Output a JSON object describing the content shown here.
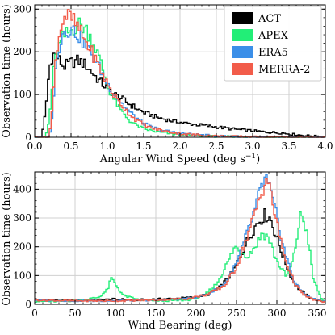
{
  "chart_data": [
    {
      "type": "line",
      "style": "step-histogram",
      "xlabel": "Angular Wind Speed (deg s",
      "xlabel_sup": "−1",
      "xlabel_end": ")",
      "ylabel": "Observation time (hours)",
      "xlim": [
        0.0,
        4.0
      ],
      "ylim": [
        0,
        310
      ],
      "xticks": [
        0.0,
        0.5,
        1.0,
        1.5,
        2.0,
        2.5,
        3.0,
        3.5,
        4.0
      ],
      "xtick_labels": [
        "0.0",
        "0.5",
        "1.0",
        "1.5",
        "2.0",
        "2.5",
        "3.0",
        "3.5",
        "4.0"
      ],
      "yticks": [
        0,
        100,
        200,
        300
      ],
      "ytick_labels": [
        "0",
        "100",
        "200",
        "300"
      ],
      "grid": true,
      "legend_position": "top-right",
      "series": [
        {
          "name": "ACT",
          "color": "#000000",
          "points": [
            [
              0.0,
              0
            ],
            [
              0.1,
              2
            ],
            [
              0.15,
              60
            ],
            [
              0.2,
              160
            ],
            [
              0.25,
              195
            ],
            [
              0.3,
              190
            ],
            [
              0.4,
              165
            ],
            [
              0.5,
              175
            ],
            [
              0.6,
              180
            ],
            [
              0.7,
              170
            ],
            [
              0.8,
              150
            ],
            [
              0.9,
              130
            ],
            [
              1.0,
              115
            ],
            [
              1.1,
              100
            ],
            [
              1.2,
              90
            ],
            [
              1.3,
              78
            ],
            [
              1.4,
              68
            ],
            [
              1.5,
              58
            ],
            [
              1.6,
              52
            ],
            [
              1.7,
              46
            ],
            [
              1.8,
              42
            ],
            [
              1.9,
              38
            ],
            [
              2.0,
              35
            ],
            [
              2.2,
              30
            ],
            [
              2.4,
              26
            ],
            [
              2.6,
              22
            ],
            [
              2.8,
              18
            ],
            [
              3.0,
              15
            ],
            [
              3.2,
              12
            ],
            [
              3.4,
              10
            ],
            [
              3.6,
              6
            ],
            [
              3.8,
              3
            ],
            [
              4.0,
              1
            ]
          ]
        },
        {
          "name": "APEX",
          "color": "#22ee77",
          "points": [
            [
              0.0,
              0
            ],
            [
              0.15,
              0
            ],
            [
              0.2,
              40
            ],
            [
              0.25,
              140
            ],
            [
              0.3,
              200
            ],
            [
              0.4,
              235
            ],
            [
              0.5,
              250
            ],
            [
              0.6,
              265
            ],
            [
              0.7,
              255
            ],
            [
              0.8,
              225
            ],
            [
              0.9,
              180
            ],
            [
              1.0,
              120
            ],
            [
              1.1,
              85
            ],
            [
              1.2,
              60
            ],
            [
              1.3,
              40
            ],
            [
              1.4,
              28
            ],
            [
              1.5,
              20
            ],
            [
              1.7,
              12
            ],
            [
              2.0,
              6
            ],
            [
              2.5,
              2
            ],
            [
              3.0,
              1
            ],
            [
              3.5,
              0
            ]
          ]
        },
        {
          "name": "ERA5",
          "color": "#3b8fe8",
          "points": [
            [
              0.0,
              0
            ],
            [
              0.2,
              0
            ],
            [
              0.25,
              60
            ],
            [
              0.3,
              190
            ],
            [
              0.4,
              250
            ],
            [
              0.5,
              255
            ],
            [
              0.6,
              240
            ],
            [
              0.7,
              215
            ],
            [
              0.8,
              190
            ],
            [
              0.9,
              160
            ],
            [
              1.0,
              125
            ],
            [
              1.1,
              100
            ],
            [
              1.2,
              80
            ],
            [
              1.3,
              60
            ],
            [
              1.4,
              45
            ],
            [
              1.5,
              33
            ],
            [
              1.6,
              24
            ],
            [
              1.8,
              15
            ],
            [
              2.0,
              9
            ],
            [
              2.5,
              3
            ],
            [
              3.0,
              1
            ],
            [
              3.5,
              0
            ]
          ]
        },
        {
          "name": "MERRA-2",
          "color": "#f25c4a",
          "points": [
            [
              0.0,
              0
            ],
            [
              0.2,
              0
            ],
            [
              0.25,
              80
            ],
            [
              0.3,
              210
            ],
            [
              0.4,
              285
            ],
            [
              0.5,
              280
            ],
            [
              0.6,
              255
            ],
            [
              0.7,
              225
            ],
            [
              0.8,
              195
            ],
            [
              0.9,
              160
            ],
            [
              1.0,
              125
            ],
            [
              1.1,
              95
            ],
            [
              1.2,
              75
            ],
            [
              1.3,
              55
            ],
            [
              1.4,
              40
            ],
            [
              1.5,
              30
            ],
            [
              1.6,
              22
            ],
            [
              1.8,
              14
            ],
            [
              2.0,
              8
            ],
            [
              2.5,
              3
            ],
            [
              3.0,
              1
            ],
            [
              3.5,
              0
            ]
          ]
        }
      ]
    },
    {
      "type": "line",
      "style": "step-histogram",
      "xlabel": "Wind Bearing (deg)",
      "ylabel": "Observation time (hours)",
      "xlim": [
        0,
        360
      ],
      "ylim": [
        0,
        460
      ],
      "xticks": [
        0,
        50,
        100,
        150,
        200,
        250,
        300,
        350
      ],
      "xtick_labels": [
        "0",
        "50",
        "100",
        "150",
        "200",
        "250",
        "300",
        "350"
      ],
      "yticks": [
        0,
        100,
        200,
        300,
        400
      ],
      "ytick_labels": [
        "0",
        "100",
        "200",
        "300",
        "400"
      ],
      "grid": true,
      "series": [
        {
          "name": "ACT",
          "color": "#000000",
          "points": [
            [
              0,
              15
            ],
            [
              25,
              15
            ],
            [
              50,
              12
            ],
            [
              75,
              15
            ],
            [
              100,
              18
            ],
            [
              125,
              15
            ],
            [
              150,
              18
            ],
            [
              175,
              20
            ],
            [
              200,
              25
            ],
            [
              215,
              35
            ],
            [
              230,
              60
            ],
            [
              245,
              110
            ],
            [
              255,
              170
            ],
            [
              265,
              230
            ],
            [
              275,
              280
            ],
            [
              285,
              310
            ],
            [
              292,
              300
            ],
            [
              300,
              230
            ],
            [
              310,
              150
            ],
            [
              320,
              80
            ],
            [
              330,
              45
            ],
            [
              340,
              25
            ],
            [
              350,
              15
            ],
            [
              360,
              10
            ]
          ]
        },
        {
          "name": "APEX",
          "color": "#22ee77",
          "points": [
            [
              0,
              10
            ],
            [
              30,
              10
            ],
            [
              60,
              15
            ],
            [
              80,
              25
            ],
            [
              90,
              50
            ],
            [
              95,
              90
            ],
            [
              100,
              70
            ],
            [
              110,
              30
            ],
            [
              130,
              15
            ],
            [
              160,
              12
            ],
            [
              190,
              15
            ],
            [
              210,
              30
            ],
            [
              225,
              70
            ],
            [
              240,
              150
            ],
            [
              248,
              200
            ],
            [
              255,
              185
            ],
            [
              265,
              170
            ],
            [
              275,
              210
            ],
            [
              282,
              250
            ],
            [
              290,
              230
            ],
            [
              300,
              150
            ],
            [
              312,
              95
            ],
            [
              320,
              150
            ],
            [
              330,
              320
            ],
            [
              338,
              240
            ],
            [
              345,
              90
            ],
            [
              355,
              20
            ],
            [
              360,
              10
            ]
          ]
        },
        {
          "name": "ERA5",
          "color": "#3b8fe8",
          "points": [
            [
              0,
              15
            ],
            [
              50,
              12
            ],
            [
              100,
              12
            ],
            [
              150,
              15
            ],
            [
              190,
              20
            ],
            [
              215,
              35
            ],
            [
              235,
              70
            ],
            [
              250,
              140
            ],
            [
              260,
              220
            ],
            [
              270,
              300
            ],
            [
              280,
              400
            ],
            [
              286,
              440
            ],
            [
              292,
              390
            ],
            [
              300,
              300
            ],
            [
              310,
              180
            ],
            [
              320,
              90
            ],
            [
              330,
              45
            ],
            [
              340,
              25
            ],
            [
              350,
              15
            ],
            [
              360,
              10
            ]
          ]
        },
        {
          "name": "MERRA-2",
          "color": "#f25c4a",
          "points": [
            [
              0,
              15
            ],
            [
              50,
              12
            ],
            [
              100,
              12
            ],
            [
              150,
              15
            ],
            [
              190,
              20
            ],
            [
              215,
              35
            ],
            [
              235,
              65
            ],
            [
              250,
              130
            ],
            [
              260,
              210
            ],
            [
              270,
              290
            ],
            [
              280,
              380
            ],
            [
              287,
              440
            ],
            [
              293,
              380
            ],
            [
              300,
              280
            ],
            [
              310,
              160
            ],
            [
              320,
              85
            ],
            [
              330,
              40
            ],
            [
              340,
              22
            ],
            [
              350,
              12
            ],
            [
              360,
              8
            ]
          ]
        }
      ]
    }
  ]
}
